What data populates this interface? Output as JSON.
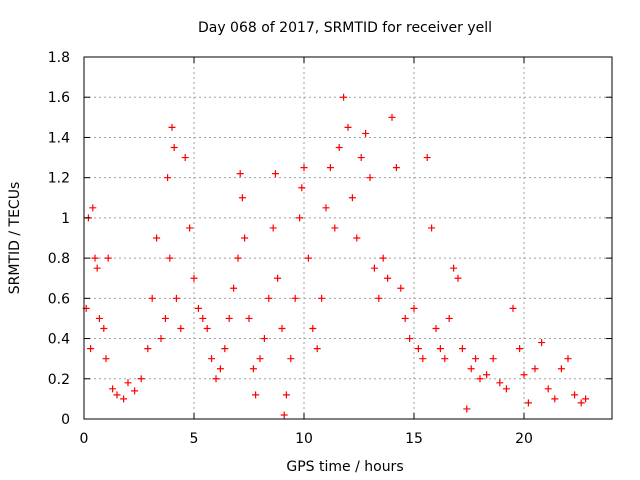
{
  "chart_data": {
    "type": "scatter",
    "title": "Day 068 of 2017, SRMTID for receiver yell",
    "xlabel": "GPS time / hours",
    "ylabel": "SRMTID / TECUs",
    "xlim": [
      0,
      24
    ],
    "ylim": [
      0,
      1.8
    ],
    "x_ticks": [
      0,
      5,
      10,
      15,
      20
    ],
    "x_tick_labels": [
      "0",
      "5",
      "10",
      "15",
      "20"
    ],
    "y_ticks": [
      0,
      0.2,
      0.4,
      0.6,
      0.8,
      1.0,
      1.2,
      1.4,
      1.6,
      1.8
    ],
    "y_tick_labels": [
      "0",
      "0.2",
      "0.4",
      "0.6",
      "0.8",
      "1",
      "1.2",
      "1.4",
      "1.6",
      "1.8"
    ],
    "grid": true,
    "marker": "+",
    "color": "#ff0000",
    "x_range_of_points": [
      0,
      22.8
    ],
    "series": [
      {
        "name": "SRMTID",
        "points": [
          [
            0.1,
            0.55
          ],
          [
            0.2,
            1.0
          ],
          [
            0.3,
            0.35
          ],
          [
            0.4,
            1.05
          ],
          [
            0.5,
            0.8
          ],
          [
            0.6,
            0.75
          ],
          [
            0.7,
            0.5
          ],
          [
            0.9,
            0.45
          ],
          [
            1.0,
            0.3
          ],
          [
            1.1,
            0.8
          ],
          [
            1.3,
            0.15
          ],
          [
            1.5,
            0.12
          ],
          [
            1.8,
            0.1
          ],
          [
            2.0,
            0.18
          ],
          [
            2.3,
            0.14
          ],
          [
            2.6,
            0.2
          ],
          [
            2.9,
            0.35
          ],
          [
            3.1,
            0.6
          ],
          [
            3.3,
            0.9
          ],
          [
            3.5,
            0.4
          ],
          [
            3.7,
            0.5
          ],
          [
            3.8,
            1.2
          ],
          [
            3.9,
            0.8
          ],
          [
            4.0,
            1.45
          ],
          [
            4.1,
            1.35
          ],
          [
            4.2,
            0.6
          ],
          [
            4.4,
            0.45
          ],
          [
            4.6,
            1.3
          ],
          [
            4.8,
            0.95
          ],
          [
            5.0,
            0.7
          ],
          [
            5.2,
            0.55
          ],
          [
            5.4,
            0.5
          ],
          [
            5.6,
            0.45
          ],
          [
            5.8,
            0.3
          ],
          [
            6.0,
            0.2
          ],
          [
            6.2,
            0.25
          ],
          [
            6.4,
            0.35
          ],
          [
            6.6,
            0.5
          ],
          [
            6.8,
            0.65
          ],
          [
            7.0,
            0.8
          ],
          [
            7.1,
            1.22
          ],
          [
            7.2,
            1.1
          ],
          [
            7.3,
            0.9
          ],
          [
            7.5,
            0.5
          ],
          [
            7.7,
            0.25
          ],
          [
            7.8,
            0.12
          ],
          [
            8.0,
            0.3
          ],
          [
            8.2,
            0.4
          ],
          [
            8.4,
            0.6
          ],
          [
            8.6,
            0.95
          ],
          [
            8.7,
            1.22
          ],
          [
            8.8,
            0.7
          ],
          [
            9.0,
            0.45
          ],
          [
            9.1,
            0.02
          ],
          [
            9.2,
            0.12
          ],
          [
            9.4,
            0.3
          ],
          [
            9.6,
            0.6
          ],
          [
            9.8,
            1.0
          ],
          [
            9.9,
            1.15
          ],
          [
            10.0,
            1.25
          ],
          [
            10.2,
            0.8
          ],
          [
            10.4,
            0.45
          ],
          [
            10.6,
            0.35
          ],
          [
            10.8,
            0.6
          ],
          [
            11.0,
            1.05
          ],
          [
            11.2,
            1.25
          ],
          [
            11.4,
            0.95
          ],
          [
            11.6,
            1.35
          ],
          [
            11.8,
            1.6
          ],
          [
            12.0,
            1.45
          ],
          [
            12.2,
            1.1
          ],
          [
            12.4,
            0.9
          ],
          [
            12.6,
            1.3
          ],
          [
            12.8,
            1.42
          ],
          [
            13.0,
            1.2
          ],
          [
            13.2,
            0.75
          ],
          [
            13.4,
            0.6
          ],
          [
            13.6,
            0.8
          ],
          [
            13.8,
            0.7
          ],
          [
            14.0,
            1.5
          ],
          [
            14.2,
            1.25
          ],
          [
            14.4,
            0.65
          ],
          [
            14.6,
            0.5
          ],
          [
            14.8,
            0.4
          ],
          [
            15.0,
            0.55
          ],
          [
            15.2,
            0.35
          ],
          [
            15.4,
            0.3
          ],
          [
            15.6,
            1.3
          ],
          [
            15.8,
            0.95
          ],
          [
            16.0,
            0.45
          ],
          [
            16.2,
            0.35
          ],
          [
            16.4,
            0.3
          ],
          [
            16.6,
            0.5
          ],
          [
            16.8,
            0.75
          ],
          [
            17.0,
            0.7
          ],
          [
            17.2,
            0.35
          ],
          [
            17.4,
            0.05
          ],
          [
            17.6,
            0.25
          ],
          [
            17.8,
            0.3
          ],
          [
            18.0,
            0.2
          ],
          [
            18.3,
            0.22
          ],
          [
            18.6,
            0.3
          ],
          [
            18.9,
            0.18
          ],
          [
            19.2,
            0.15
          ],
          [
            19.5,
            0.55
          ],
          [
            19.8,
            0.35
          ],
          [
            20.0,
            0.22
          ],
          [
            20.2,
            0.08
          ],
          [
            20.5,
            0.25
          ],
          [
            20.8,
            0.38
          ],
          [
            21.1,
            0.15
          ],
          [
            21.4,
            0.1
          ],
          [
            21.7,
            0.25
          ],
          [
            22.0,
            0.3
          ],
          [
            22.3,
            0.12
          ],
          [
            22.6,
            0.08
          ],
          [
            22.8,
            0.1
          ]
        ]
      }
    ]
  }
}
